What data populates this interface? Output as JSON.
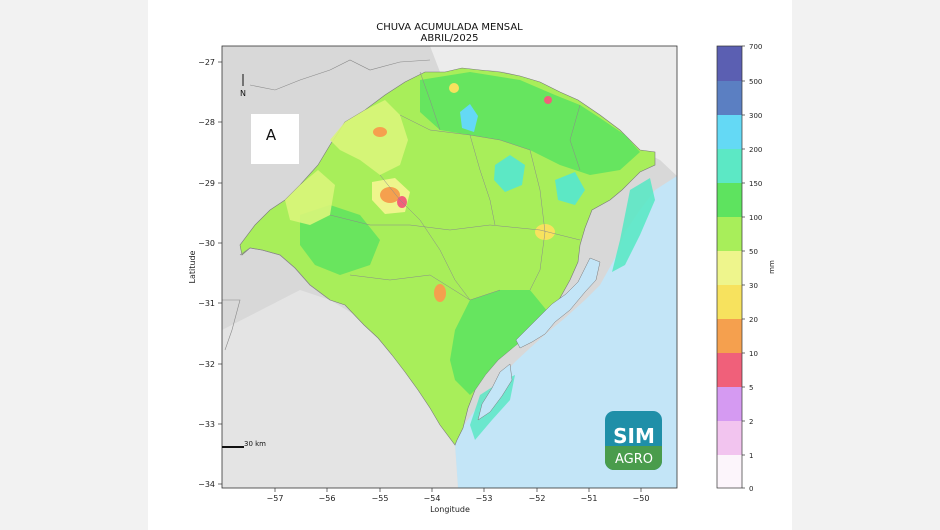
{
  "map": {
    "title": "CHUVA ACUMULADA MENSAL",
    "subtitle": "ABRIL/2025",
    "xlabel": "Longitude",
    "ylabel": "Latitude",
    "x_ticks": [
      "−57",
      "−56",
      "−55",
      "−54",
      "−53",
      "−52",
      "−51",
      "−50"
    ],
    "y_ticks": [
      "−27",
      "−28",
      "−29",
      "−30",
      "−31",
      "−32",
      "−33",
      "−34"
    ],
    "panel_label": "A",
    "north_label": "N",
    "scale_label": "30 km",
    "logo_top": "SIM",
    "logo_bottom": "AGRO"
  },
  "colorbar": {
    "unit": "mm",
    "ticks": [
      "0",
      "1",
      "2",
      "5",
      "10",
      "20",
      "30",
      "50",
      "100",
      "150",
      "200",
      "300",
      "500",
      "700"
    ],
    "colors": [
      "#fcf5fb",
      "#f2c4ef",
      "#d59af2",
      "#f0607a",
      "#f5a04e",
      "#f7e25e",
      "#eef58c",
      "#a8ee5a",
      "#5ee35f",
      "#5ce8c5",
      "#64d9f5",
      "#5b7fc2",
      "#5b5fb2"
    ]
  },
  "colors": {
    "land_outside": "#d8d8d8",
    "ocean": "#c3e5f7",
    "state_base": "#a8ee5a",
    "logo_bg": "#1f8fa8"
  }
}
